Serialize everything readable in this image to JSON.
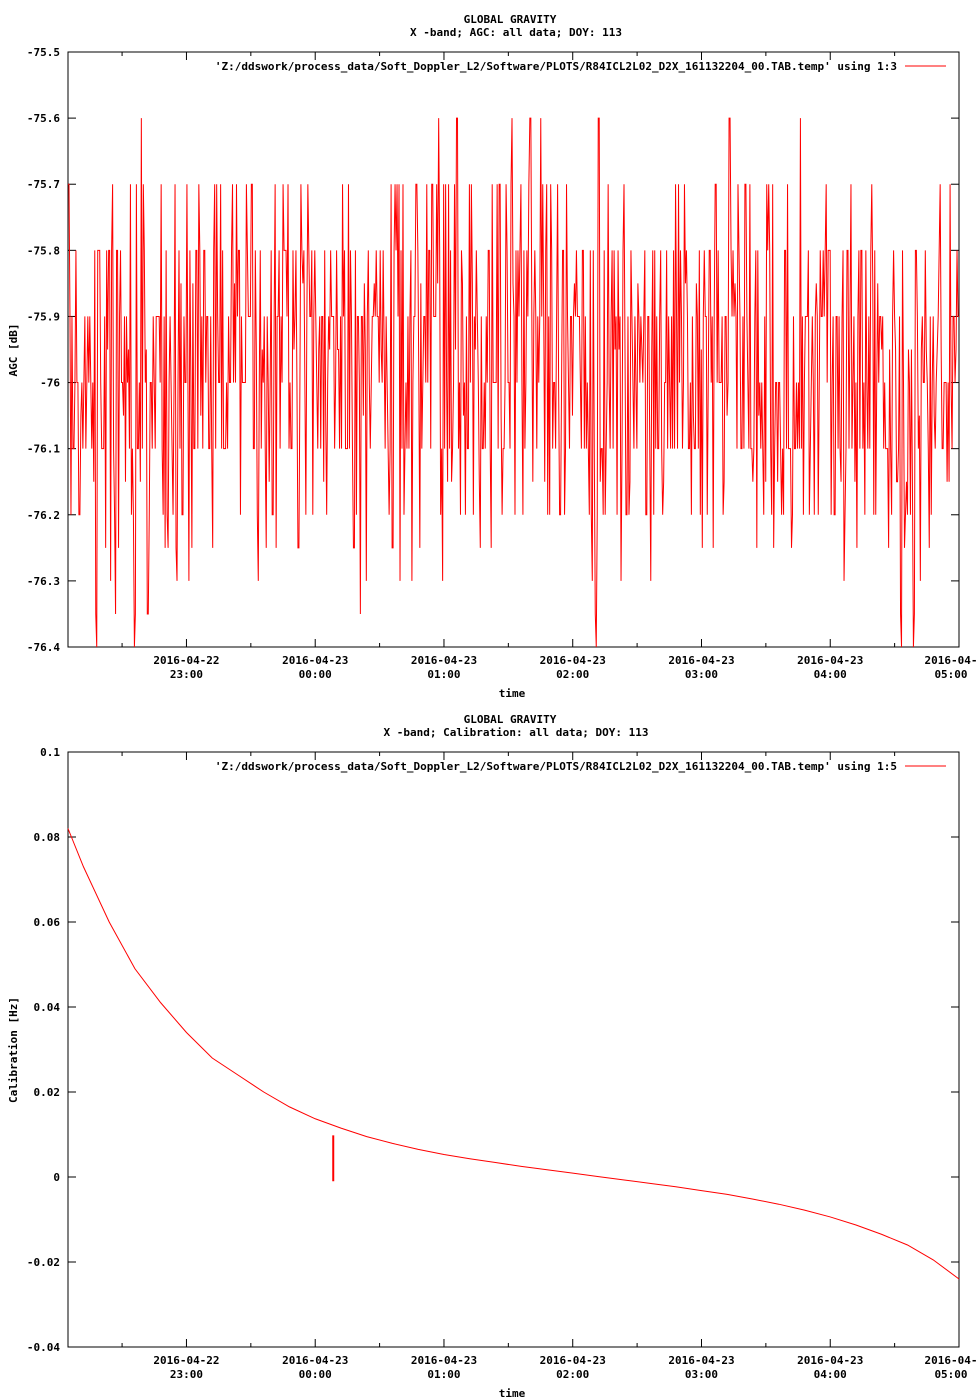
{
  "chart_data": [
    {
      "type": "line",
      "title": "GLOBAL GRAVITY",
      "subtitle": "X -band; AGC: all data; DOY: 113",
      "ylabel": "AGC [dB]",
      "xlabel": "time",
      "ylim": [
        -76.4,
        -75.5
      ],
      "y_ticks": [
        "-75.5",
        "-75.6",
        "-75.7",
        "-75.8",
        "-75.9",
        "-76",
        "-76.1",
        "-76.2",
        "-76.3",
        "-76.4"
      ],
      "y_tick_values": [
        -75.5,
        -75.6,
        -75.7,
        -75.8,
        -75.9,
        -76.0,
        -76.1,
        -76.2,
        -76.3,
        -76.4
      ],
      "x_range_hours": [
        -1.92,
        5.0
      ],
      "x_ticks": [
        {
          "date": "2016-04-22",
          "time": "23:00",
          "hour": -1
        },
        {
          "date": "2016-04-23",
          "time": "00:00",
          "hour": 0
        },
        {
          "date": "2016-04-23",
          "time": "01:00",
          "hour": 1
        },
        {
          "date": "2016-04-23",
          "time": "02:00",
          "hour": 2
        },
        {
          "date": "2016-04-23",
          "time": "03:00",
          "hour": 3
        },
        {
          "date": "2016-04-23",
          "time": "04:00",
          "hour": 4
        },
        {
          "date": "2016-04-",
          "time": "05:00",
          "hour": 5
        }
      ],
      "grid": false,
      "legend_position": "top-right",
      "series": [
        {
          "name": "'Z:/ddswork/process_data/Soft_Doppler_L2/Software/PLOTS/R84ICL2L02_D2X_161132204_00.TAB.temp' using 1:3",
          "color": "#ff0000",
          "style": "noisy-quantized",
          "typical_range": [
            -76.1,
            -75.8
          ],
          "step": 0.1,
          "spikes_up": [
            -1.35,
            0.96,
            1.1,
            1.53,
            1.67,
            1.75,
            2.2,
            3.22,
            3.77
          ],
          "spikes_down": [
            -1.7,
            -1.55,
            -1.4,
            -1.3,
            0.35,
            2.18,
            4.55,
            4.65
          ]
        }
      ]
    },
    {
      "type": "line",
      "title": "GLOBAL GRAVITY",
      "subtitle": "X -band; Calibration: all data; DOY: 113",
      "ylabel": "Calibration [Hz]",
      "xlabel": "time",
      "ylim": [
        -0.04,
        0.1
      ],
      "y_ticks": [
        "0.1",
        "0.08",
        "0.06",
        "0.04",
        "0.02",
        "0",
        "-0.02",
        "-0.04"
      ],
      "y_tick_values": [
        0.1,
        0.08,
        0.06,
        0.04,
        0.02,
        0,
        -0.02,
        -0.04
      ],
      "x_range_hours": [
        -1.92,
        5.0
      ],
      "x_ticks": [
        {
          "date": "2016-04-22",
          "time": "23:00",
          "hour": -1
        },
        {
          "date": "2016-04-23",
          "time": "00:00",
          "hour": 0
        },
        {
          "date": "2016-04-23",
          "time": "01:00",
          "hour": 1
        },
        {
          "date": "2016-04-23",
          "time": "02:00",
          "hour": 2
        },
        {
          "date": "2016-04-23",
          "time": "03:00",
          "hour": 3
        },
        {
          "date": "2016-04-23",
          "time": "04:00",
          "hour": 4
        },
        {
          "date": "2016-04-",
          "time": "05:00",
          "hour": 5
        }
      ],
      "grid": false,
      "legend_position": "top-right",
      "series": [
        {
          "name": "'Z:/ddswork/process_data/Soft_Doppler_L2/Software/PLOTS/R84ICL2L02_D2X_161132204_00.TAB.temp' using 1:5",
          "color": "#ff0000",
          "x": [
            -1.92,
            -1.8,
            -1.6,
            -1.4,
            -1.2,
            -1.0,
            -0.8,
            -0.6,
            -0.4,
            -0.2,
            0.0,
            0.2,
            0.4,
            0.6,
            0.8,
            1.0,
            1.2,
            1.4,
            1.6,
            1.8,
            2.0,
            2.2,
            2.4,
            2.6,
            2.8,
            3.0,
            3.2,
            3.4,
            3.6,
            3.8,
            4.0,
            4.2,
            4.4,
            4.6,
            4.8,
            5.0
          ],
          "y": [
            0.082,
            0.073,
            0.06,
            0.049,
            0.041,
            0.034,
            0.028,
            0.024,
            0.02,
            0.0165,
            0.0137,
            0.0115,
            0.0095,
            0.0079,
            0.0065,
            0.0053,
            0.0043,
            0.0034,
            0.0025,
            0.0017,
            0.0009,
            0.0001,
            -0.0007,
            -0.0015,
            -0.0023,
            -0.0032,
            -0.0041,
            -0.0052,
            -0.0064,
            -0.0078,
            -0.0094,
            -0.0113,
            -0.0135,
            -0.016,
            -0.0195,
            -0.024
          ],
          "glitch": {
            "x": 0.14,
            "y_low": -0.001,
            "y_high": 0.0098
          }
        }
      ]
    }
  ]
}
